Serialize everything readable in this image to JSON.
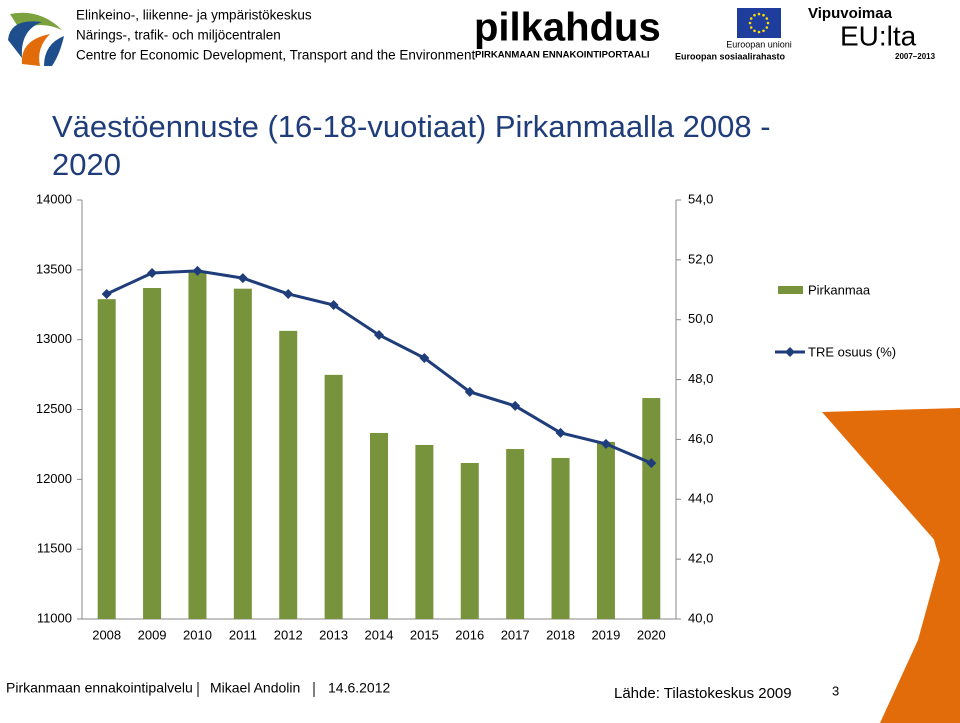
{
  "header": {
    "ely_lines": [
      "Elinkeino-, liikenne- ja ympäristökeskus",
      "Närings-, trafik- och miljöcentralen",
      "Centre for Economic Development, Transport and the Environment"
    ],
    "pilkahdus": "pilkahdus",
    "pilkahdus_sub": "PIRKANMAAN ENNAKOINTIPORTAALI",
    "eu_lines": [
      "Euroopan unioni",
      "Euroopan sosiaalirahasto"
    ],
    "vipu": "Vipuvoimaa",
    "vipu_eu": "EU:lta",
    "vipu_years": "2007–2013"
  },
  "chart_data": {
    "type": "combo",
    "title": "Väestöennuste (16-18-vuotiaat) Pirkanmaalla 2008 - 2020",
    "categories": [
      "2008",
      "2009",
      "2010",
      "2011",
      "2012",
      "2013",
      "2014",
      "2015",
      "2016",
      "2017",
      "2018",
      "2019",
      "2020"
    ],
    "series": [
      {
        "name": "Pirkanmaa",
        "type": "bar",
        "color": "#77933c",
        "values": [
          13290,
          13370,
          13485,
          13365,
          13063,
          12748,
          12332,
          12246,
          12117,
          12217,
          12153,
          12268,
          12582
        ]
      },
      {
        "name": "TRE osuus (%)",
        "type": "line",
        "axis": "y2",
        "color": "#1f3d7a",
        "values": [
          50.86,
          51.56,
          51.63,
          51.39,
          50.86,
          50.49,
          49.49,
          48.72,
          47.59,
          47.12,
          46.22,
          45.85,
          45.21
        ]
      }
    ],
    "ylim": [
      11000,
      14000
    ],
    "yticks": [
      11000,
      11500,
      12000,
      12500,
      13000,
      13500,
      14000
    ],
    "y2lim": [
      40,
      54
    ],
    "y2ticks": [
      {
        "value": 40,
        "label": "40,0"
      },
      {
        "value": 42,
        "label": "42,0"
      },
      {
        "value": 44,
        "label": "44,0"
      },
      {
        "value": 46,
        "label": "46,0"
      },
      {
        "value": 48,
        "label": "48,0"
      },
      {
        "value": 50,
        "label": "50,0"
      },
      {
        "value": 52,
        "label": "52,0"
      },
      {
        "value": 54,
        "label": "54,0"
      }
    ],
    "grid": false,
    "legend": "right"
  },
  "footer": {
    "service": "Pirkanmaan ennakointipalvelu",
    "author": "Mikael Andolin",
    "date": "14.6.2012",
    "source": "Lähde: Tilastokeskus 2009",
    "page": "3"
  }
}
